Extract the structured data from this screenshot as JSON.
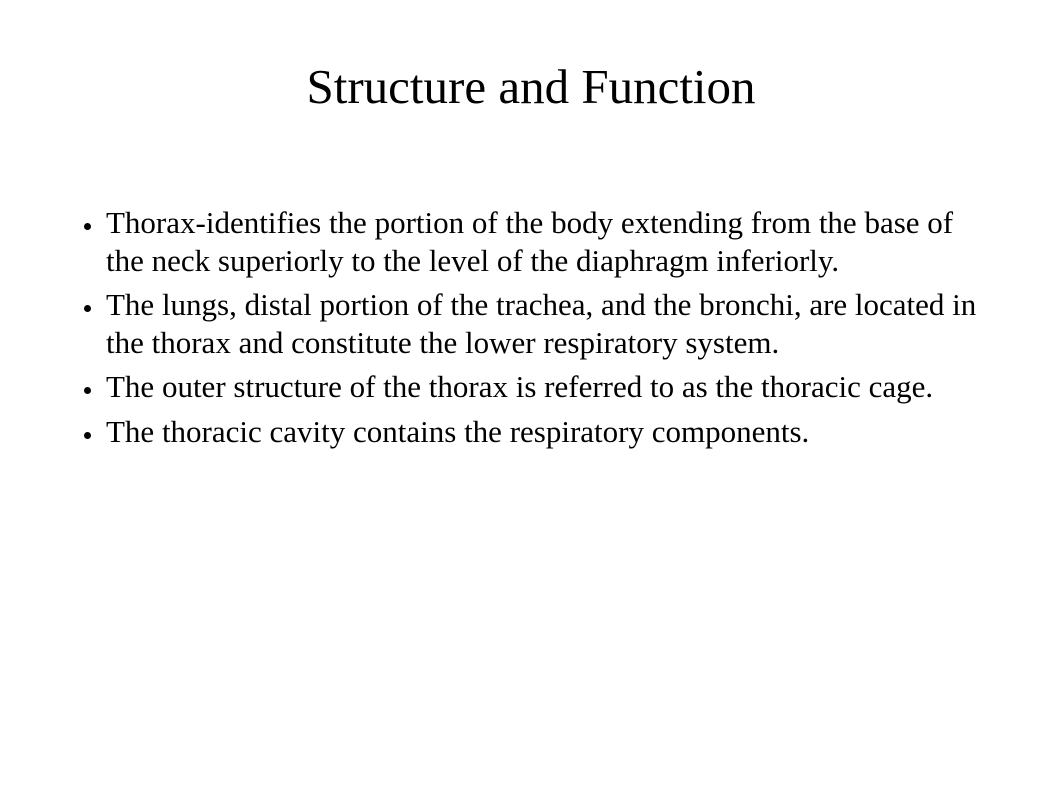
{
  "slide": {
    "title": "Structure and Function",
    "title_fontsize": 49,
    "title_color": "#000000",
    "body_fontsize": 31,
    "body_color": "#000000",
    "background_color": "#ffffff",
    "font_family": "Times New Roman",
    "bullets": [
      "Thorax-identifies the portion of the body extending from the base of the neck superiorly to the level of the diaphragm inferiorly.",
      "The lungs, distal portion of the trachea, and the bronchi, are located in the thorax and constitute the lower respiratory system.",
      "The outer structure of the thorax is referred to as the thoracic cage.",
      "The thoracic cavity contains the respiratory components."
    ]
  }
}
